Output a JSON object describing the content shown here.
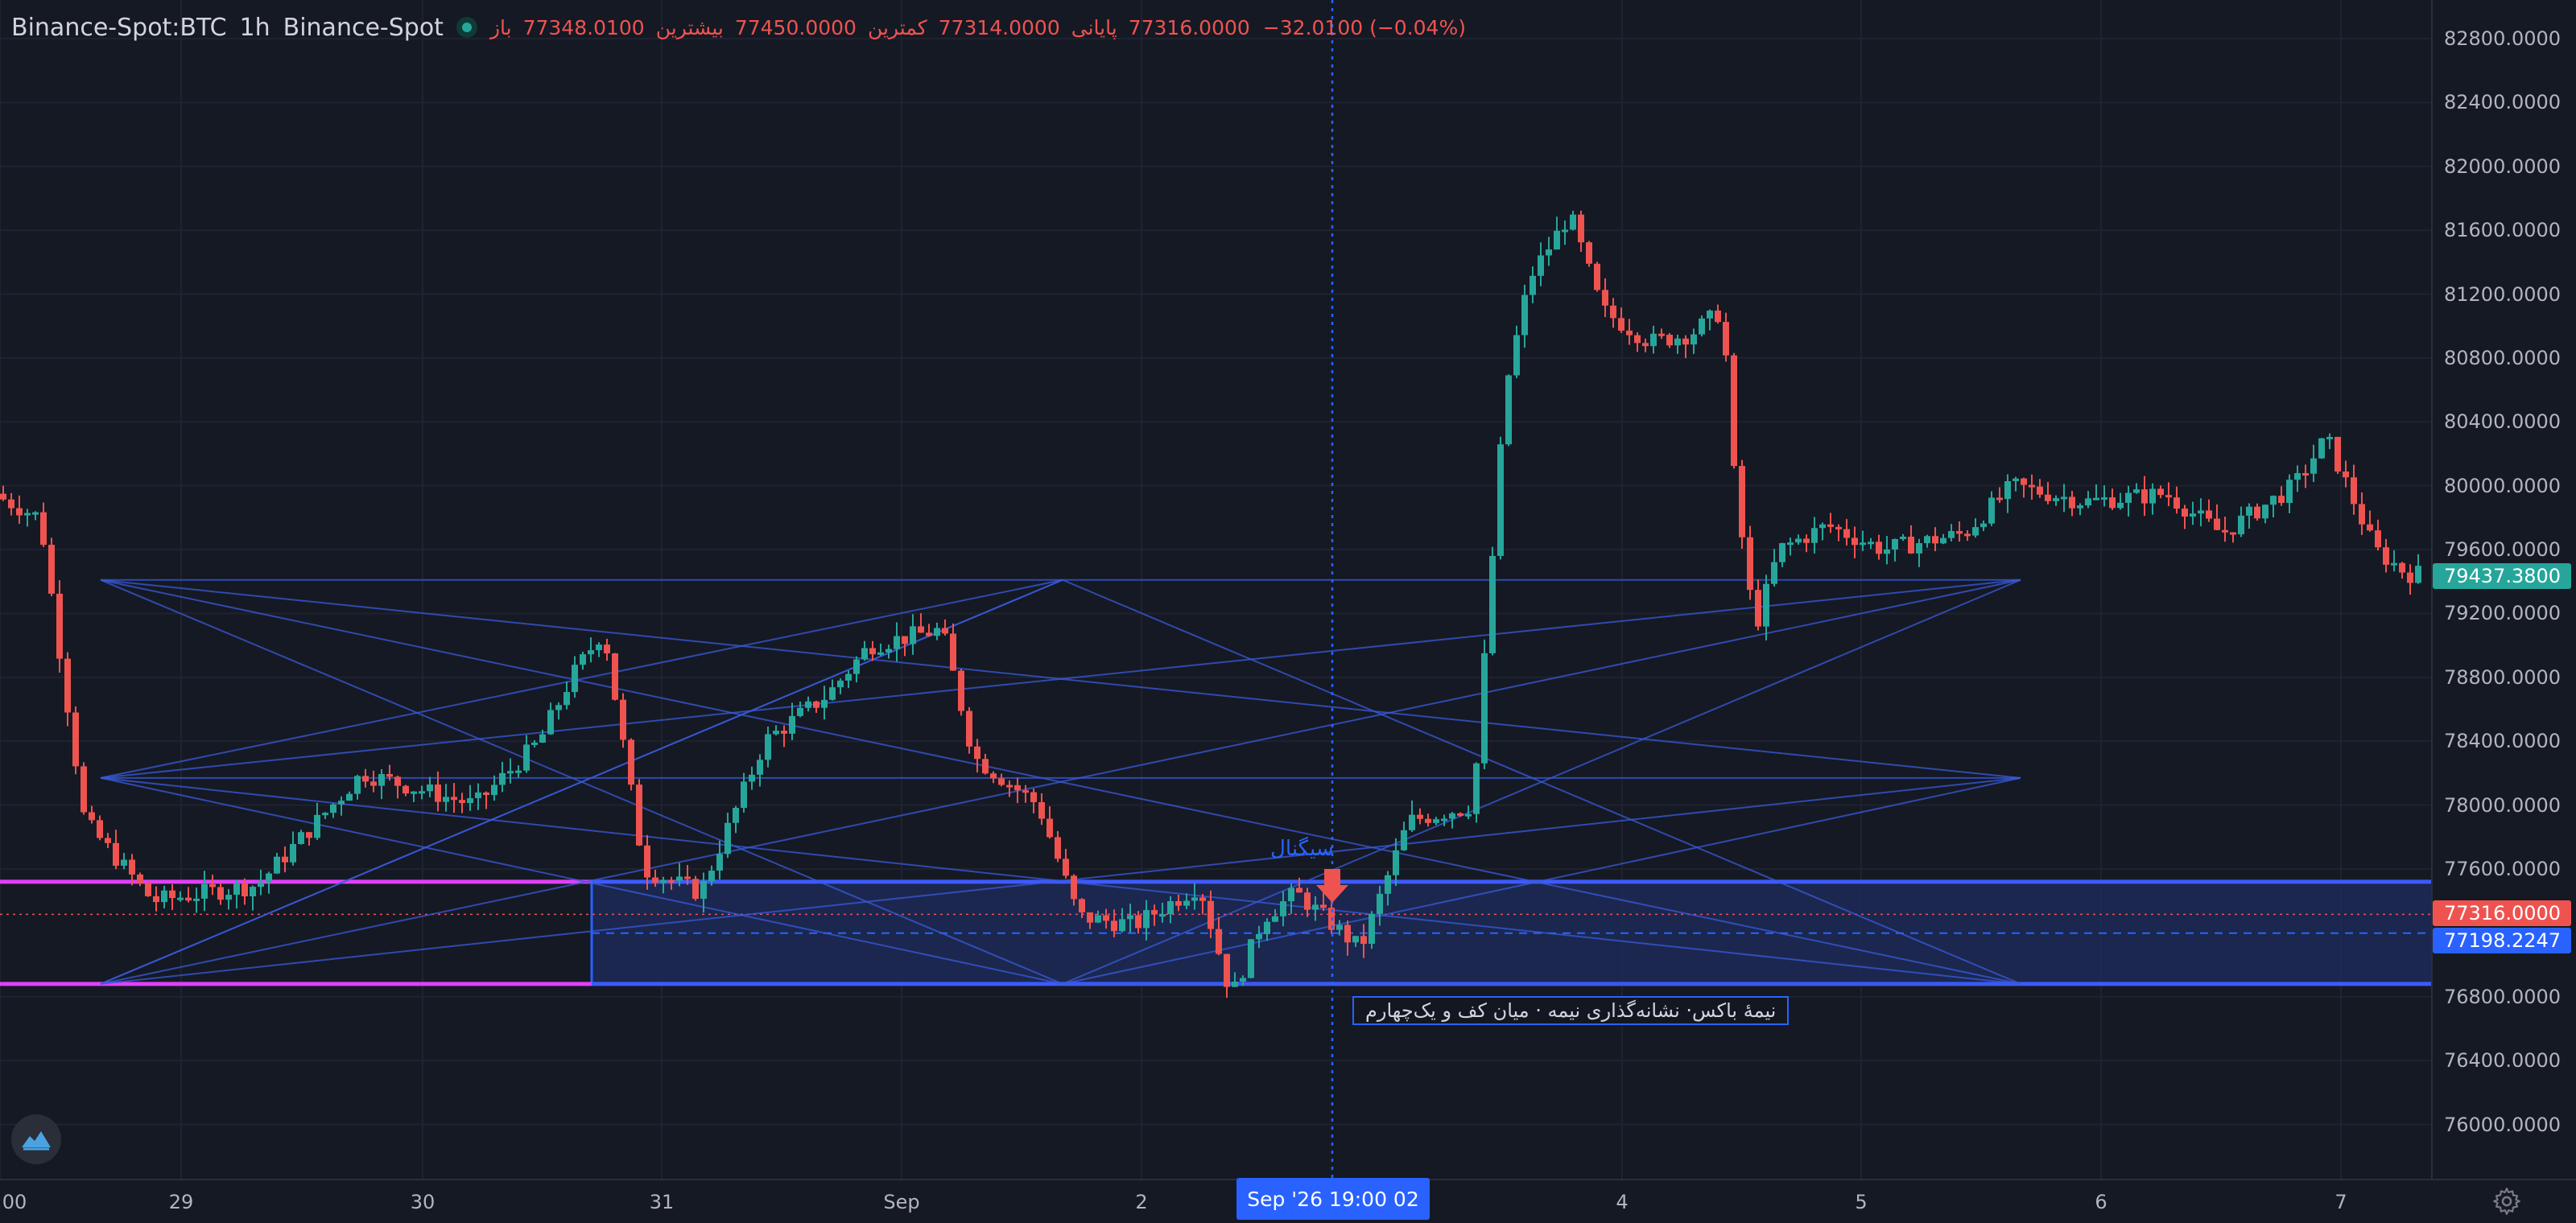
{
  "legend": {
    "symbol": "Binance-Spot:BTC",
    "interval": "1h",
    "exchange": "Binance-Spot",
    "open_label": "باز",
    "open": "77348.0100",
    "high_label": "بیشترین",
    "high": "77450.0000",
    "low_label": "کمترین",
    "low": "77314.0000",
    "close_label": "پایانی",
    "close": "77316.0000",
    "change": "−32.0100 (−0.04%)"
  },
  "price_axis": {
    "ticks": [
      "82800.0000",
      "82400.0000",
      "82000.0000",
      "81600.0000",
      "81200.0000",
      "80800.0000",
      "80400.0000",
      "80000.0000",
      "79600.0000",
      "79200.0000",
      "78800.0000",
      "78400.0000",
      "78000.0000",
      "77600.0000",
      "76800.0000",
      "76400.0000",
      "76000.0000"
    ],
    "last_price_tag": "79437.3800",
    "close_tag": "77316.0000",
    "crosshair_tag": "77198.2247"
  },
  "time_axis": {
    "ticks": [
      ":00",
      "29",
      "30",
      "31",
      "Sep",
      "2",
      "4",
      "5",
      "6",
      "7"
    ],
    "crosshair_label": "Sep '26   19:00 02"
  },
  "annotations": {
    "box_note": "نیمهٔ باکس· نشانه‌گذاری نیمه · میان کف و یک‌چهارم",
    "signal_label": "سیگنال"
  },
  "colors": {
    "up": "#26a69a",
    "down": "#ef5350",
    "accent": "#2962ff",
    "magenta": "#e040fb",
    "background": "#151924"
  },
  "icons": {
    "status": "live-status-dot-icon",
    "logo": "brand-logo-icon",
    "settings": "gear-icon"
  }
}
